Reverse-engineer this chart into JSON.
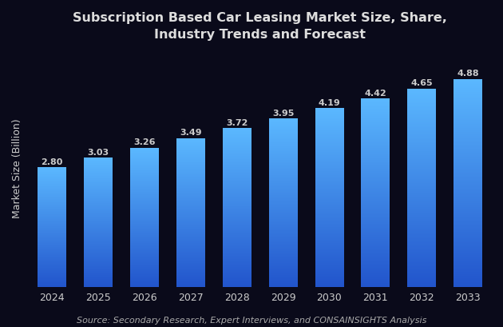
{
  "title": "Subscription Based Car Leasing Market Size, Share,\nIndustry Trends and Forecast",
  "ylabel": "Market Size (Billion)",
  "source_text": "Source: Secondary Research, Expert Interviews, and CONSAINSIGHTS Analysis",
  "categories": [
    "2024",
    "2025",
    "2026",
    "2027",
    "2028",
    "2029",
    "2030",
    "2031",
    "2032",
    "2033"
  ],
  "values": [
    2.8,
    3.03,
    3.26,
    3.49,
    3.72,
    3.95,
    4.19,
    4.42,
    4.65,
    4.88
  ],
  "bar_color_top": "#5BB8FF",
  "bar_color_bottom": "#2255CC",
  "background_color": "#0A0A1A",
  "text_color": "#CCCCCC",
  "title_color": "#DDDDDD",
  "source_color": "#AAAAAA",
  "title_fontsize": 11.5,
  "label_fontsize": 9,
  "tick_fontsize": 9,
  "source_fontsize": 8,
  "value_label_fontsize": 8,
  "ylim": [
    0,
    5.6
  ]
}
